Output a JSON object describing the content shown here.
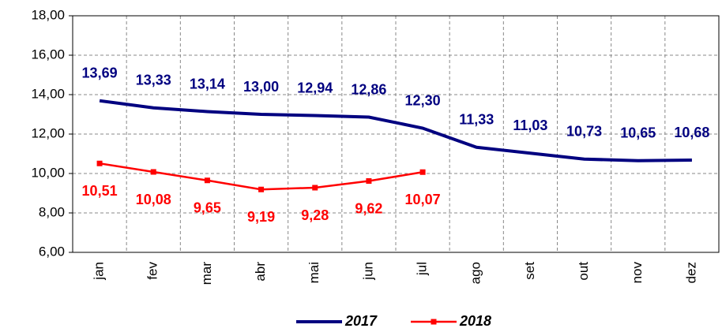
{
  "chart_data": {
    "type": "line",
    "categories": [
      "jan",
      "fev",
      "mar",
      "abr",
      "mai",
      "jun",
      "jul",
      "ago",
      "set",
      "out",
      "nov",
      "dez"
    ],
    "series": [
      {
        "name": "2017",
        "color": "#000080",
        "values": [
          13.69,
          13.33,
          13.14,
          13.0,
          12.94,
          12.86,
          12.3,
          11.33,
          11.03,
          10.73,
          10.65,
          10.68
        ],
        "value_labels": [
          "13,69",
          "13,33",
          "13,14",
          "13,00",
          "12,94",
          "12,86",
          "12,30",
          "11,33",
          "11,03",
          "10,73",
          "10,65",
          "10,68"
        ]
      },
      {
        "name": "2018",
        "color": "#ff0000",
        "values": [
          10.51,
          10.08,
          9.65,
          9.19,
          9.28,
          9.62,
          10.07,
          null,
          null,
          null,
          null,
          null
        ],
        "value_labels": [
          "10,51",
          "10,08",
          "9,65",
          "9,19",
          "9,28",
          "9,62",
          "10,07",
          null,
          null,
          null,
          null,
          null
        ]
      }
    ],
    "ylim": [
      6,
      18
    ],
    "yticks": [
      {
        "value": 6,
        "label": "6,00"
      },
      {
        "value": 8,
        "label": "8,00"
      },
      {
        "value": 10,
        "label": "10,00"
      },
      {
        "value": 12,
        "label": "12,00"
      },
      {
        "value": 14,
        "label": "14,00"
      },
      {
        "value": 16,
        "label": "16,00"
      },
      {
        "value": 18,
        "label": "18,00"
      }
    ],
    "grid": true
  }
}
